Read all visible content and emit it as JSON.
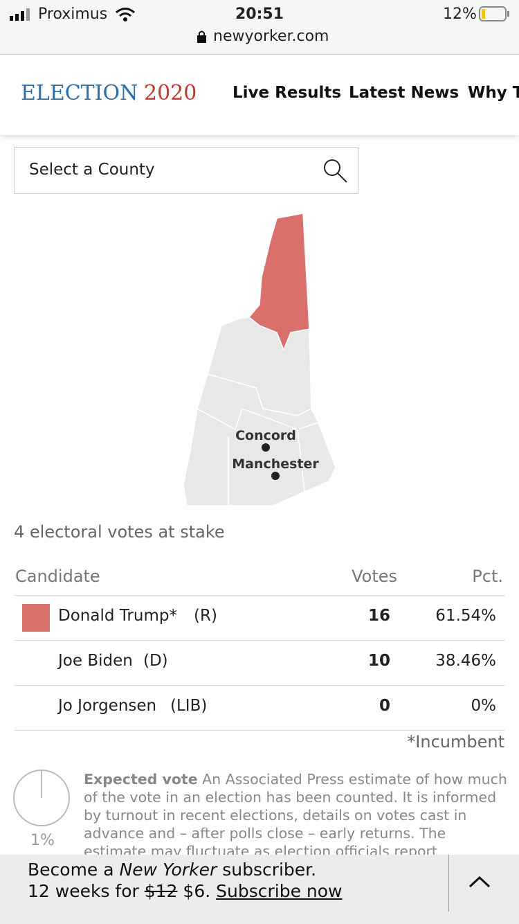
{
  "status_bar": {
    "carrier": "Proximus",
    "time": "20:51",
    "battery": "12%",
    "url": "newyorker.com"
  },
  "nav": {
    "logo_word": "ELECTION",
    "logo_year": "2020",
    "links": [
      "Live Results",
      "Latest News",
      "Why Tr"
    ]
  },
  "search": {
    "placeholder": "Select a County"
  },
  "map": {
    "cities": [
      "Concord",
      "Manchester"
    ]
  },
  "stake": "4 electoral votes at stake",
  "table": {
    "headers": [
      "Candidate",
      "Votes",
      "Pct."
    ],
    "rows": [
      {
        "name": "Donald Trump*",
        "party": "(R)",
        "votes": 16,
        "pct": "61.54%"
      },
      {
        "name": "Joe Biden",
        "party": "(D)",
        "votes": 10,
        "pct": "38.46%"
      },
      {
        "name": "Jo Jorgensen",
        "party": "(LIB)",
        "votes": 0,
        "pct": "0%"
      }
    ],
    "footnote": "*Incumbent"
  },
  "expected": {
    "pct": "1%",
    "title": "Expected vote",
    "text": "An Associated Press estimate of how much of the vote in an election has been counted. It is informed by turnout in recent elections, details on votes cast in advance and – after polls close – early returns. The estimate may fluctuate as election officials report"
  },
  "banner": {
    "line1_a": "Become a",
    "line1_em": "New Yorker",
    "line1_b": "subscriber.",
    "line2_a": "12 weeks for",
    "old_price": "$12",
    "new_price": "$6.",
    "link": "Subscribe now"
  }
}
